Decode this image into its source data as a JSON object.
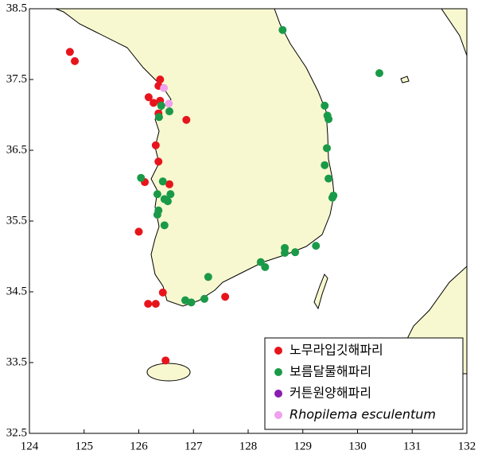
{
  "chart_data": {
    "type": "scatter",
    "xlim": [
      124,
      132
    ],
    "xticks": [
      124,
      125,
      126,
      127,
      128,
      129,
      130,
      131,
      132
    ],
    "ylim": [
      32.5,
      38.5
    ],
    "yticks": [
      32.5,
      33.5,
      34.5,
      35.5,
      36.5,
      37.5,
      38.5
    ],
    "legend": "bottom-right",
    "series": [
      {
        "name": "노무라입깃해파리",
        "color": "#e8141c",
        "x": [
          124.74,
          124.83,
          126.39,
          126.36,
          126.18,
          126.27,
          126.39,
          126.36,
          126.87,
          126.31,
          126.36,
          126.11,
          126.56,
          126.0,
          126.17,
          126.31,
          126.44,
          127.58,
          126.49
        ],
        "values": [
          37.89,
          37.76,
          37.5,
          37.41,
          37.25,
          37.17,
          37.2,
          37.02,
          36.93,
          36.57,
          36.34,
          36.05,
          36.02,
          35.35,
          34.33,
          34.33,
          34.49,
          34.43,
          33.53
        ]
      },
      {
        "name": "보름달물해파리",
        "color": "#1a9a48",
        "x": [
          128.63,
          130.4,
          129.4,
          129.45,
          129.47,
          129.44,
          129.4,
          129.47,
          129.56,
          129.54,
          129.24,
          128.86,
          128.67,
          128.67,
          128.23,
          128.31,
          127.27,
          127.2,
          126.85,
          126.96,
          126.41,
          126.56,
          126.37,
          126.04,
          126.44,
          126.34,
          126.47,
          126.58,
          126.53,
          126.36,
          126.34,
          126.47
        ],
        "values": [
          38.2,
          37.59,
          37.13,
          36.99,
          36.94,
          36.53,
          36.29,
          36.1,
          35.86,
          35.83,
          35.15,
          35.06,
          35.12,
          35.05,
          34.92,
          34.85,
          34.71,
          34.4,
          34.38,
          34.35,
          37.13,
          37.05,
          36.97,
          36.11,
          36.06,
          35.88,
          35.81,
          35.88,
          35.78,
          35.65,
          35.59,
          35.44
        ]
      },
      {
        "name": "커튼원양해파리",
        "color": "#8a1cb0",
        "x": [],
        "values": []
      },
      {
        "name": "Rhopilema esculentum",
        "color": "#f0a0ec",
        "x": [
          126.46,
          126.55
        ],
        "values": [
          37.38,
          37.16
        ]
      }
    ]
  }
}
